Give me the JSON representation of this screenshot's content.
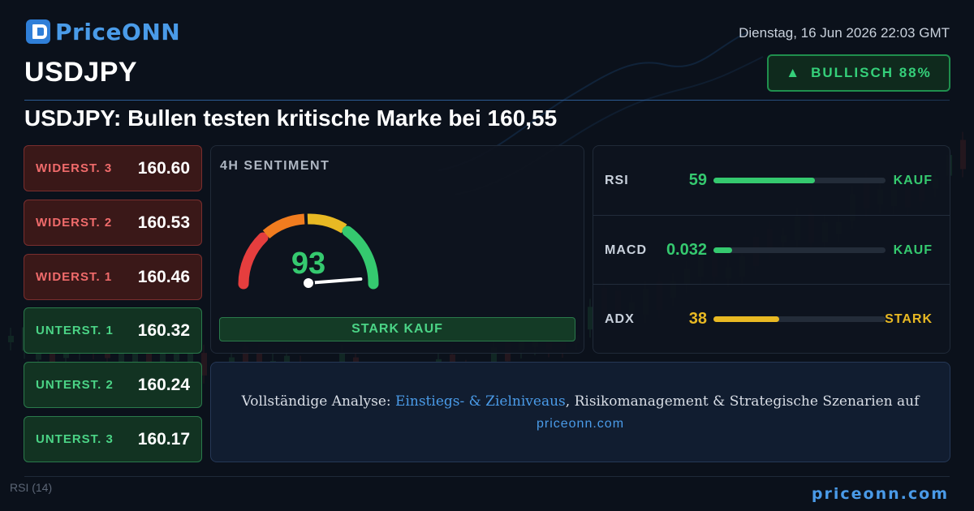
{
  "brand": {
    "name": "PriceONN"
  },
  "header": {
    "datetime": "Dienstag, 16 Jun 2026 22:03 GMT",
    "symbol": "USDJPY",
    "headline": "USDJPY: Bullen testen kritische Marke bei 160,55"
  },
  "signal": {
    "arrow": "▲",
    "label": "BULLISCH 88%",
    "color": "#35d07a"
  },
  "levels": [
    {
      "label": "WIDERST. 3",
      "value": "160.60",
      "kind": "resistance"
    },
    {
      "label": "WIDERST. 2",
      "value": "160.53",
      "kind": "resistance"
    },
    {
      "label": "WIDERST. 1",
      "value": "160.46",
      "kind": "resistance"
    },
    {
      "label": "UNTERST. 1",
      "value": "160.32",
      "kind": "support"
    },
    {
      "label": "UNTERST. 2",
      "value": "160.24",
      "kind": "support"
    },
    {
      "label": "UNTERST. 3",
      "value": "160.17",
      "kind": "support"
    }
  ],
  "sentiment": {
    "title": "4H SENTIMENT",
    "score": "93",
    "score_fraction": 0.93,
    "verdict": "STARK KAUF"
  },
  "indicators": [
    {
      "name": "RSI",
      "value": "59",
      "fraction": 0.59,
      "signal": "KAUF",
      "color": "#35c96f"
    },
    {
      "name": "MACD",
      "value": "0.032",
      "fraction": 0.11,
      "signal": "KAUF",
      "color": "#35c96f"
    },
    {
      "name": "ADX",
      "value": "38",
      "fraction": 0.38,
      "signal": "STARK",
      "color": "#e8b923"
    }
  ],
  "promo": {
    "prefix": "Vollständige Analyse: ",
    "link": "Einstiegs- & Zielniveaus",
    "suffix": ", Risikomanagement & Strategische Szenarien auf",
    "url": "priceonn.com"
  },
  "footer": {
    "url": "priceonn.com",
    "rsi_label": "RSI  (14)"
  },
  "colors": {
    "resistance": "#f06b6b",
    "support": "#4bd486",
    "accent": "#4a9be8"
  }
}
